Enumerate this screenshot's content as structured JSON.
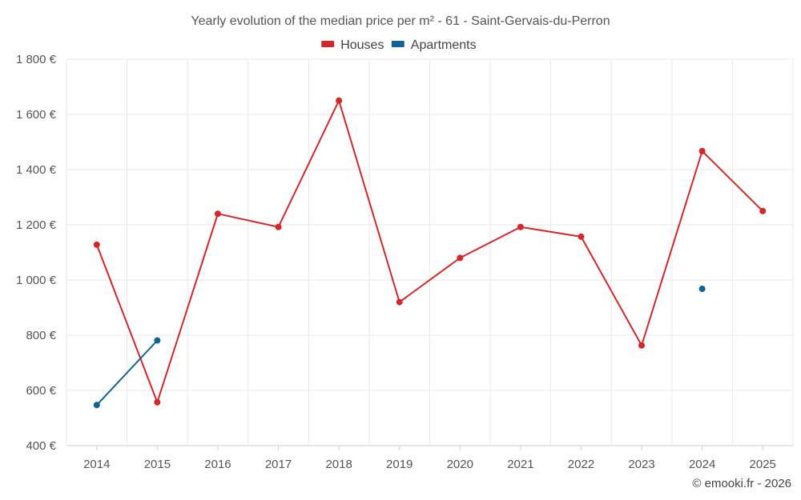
{
  "chart_data": {
    "type": "line",
    "title": "Yearly evolution of the median price per m² - 61 - Saint-Gervais-du-Perron",
    "categories": [
      "2014",
      "2015",
      "2016",
      "2017",
      "2018",
      "2019",
      "2020",
      "2021",
      "2022",
      "2023",
      "2024",
      "2025"
    ],
    "y_ticks": [
      "400 €",
      "600 €",
      "800 €",
      "1 000 €",
      "1 200 €",
      "1 400 €",
      "1 600 €",
      "1 800 €"
    ],
    "y_tick_values": [
      400,
      600,
      800,
      1000,
      1200,
      1400,
      1600,
      1800
    ],
    "ylim": [
      400,
      1800
    ],
    "grid": true,
    "legend_position": "top-center",
    "series": [
      {
        "name": "Houses",
        "color": "#d62728",
        "values": [
          1128,
          557,
          1240,
          1192,
          1650,
          920,
          1080,
          1192,
          1157,
          763,
          1467,
          1250
        ]
      },
      {
        "name": "Apartments",
        "color": "#0f6396",
        "values": [
          547,
          781,
          null,
          null,
          null,
          null,
          null,
          null,
          null,
          null,
          968,
          null
        ]
      }
    ]
  },
  "credit": "© emooki.fr - 2026"
}
